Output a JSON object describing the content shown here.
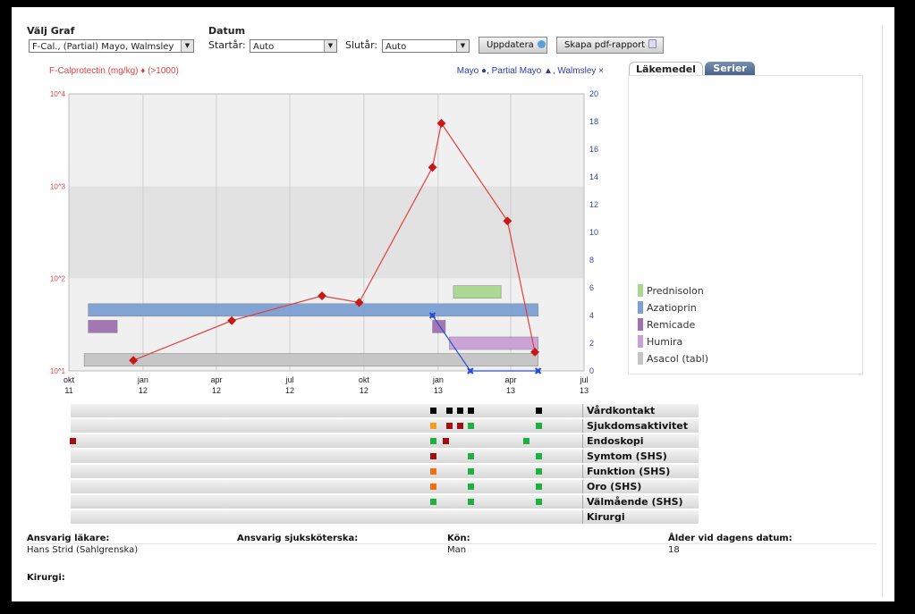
{
  "controls": {
    "graph_label": "Välj Graf",
    "graph_value": "F-Cal., (Partial) Mayo, Walmsley",
    "date_label": "Datum",
    "start_label": "Startår:",
    "start_value": "Auto",
    "end_label": "Slutår:",
    "end_value": "Auto",
    "update_button": "Uppdatera",
    "pdf_button": "Skapa pdf-rapport"
  },
  "chart_data": {
    "type": "line",
    "title_left": "F-Calprotectin (mg/kg) ♦ (>1000)",
    "title_right": "Mayo ●, Partial Mayo ▲, Walmsley ×",
    "left_axis": {
      "scale": "log",
      "ticks": [
        "10^4",
        "10^3",
        "10^2",
        "10^1"
      ],
      "ylim": [
        10,
        10000
      ]
    },
    "right_axis": {
      "ticks": [
        "20",
        "18",
        "16",
        "14",
        "12",
        "10",
        "8",
        "6",
        "4",
        "2",
        "0"
      ],
      "ylim": [
        0,
        20
      ]
    },
    "x_ticks": [
      {
        "top": "okt",
        "bottom": "11"
      },
      {
        "top": "jan",
        "bottom": "12"
      },
      {
        "top": "apr",
        "bottom": "12"
      },
      {
        "top": "jul",
        "bottom": "12"
      },
      {
        "top": "okt",
        "bottom": "12"
      },
      {
        "top": "jan",
        "bottom": "13"
      },
      {
        "top": "apr",
        "bottom": "13"
      },
      {
        "top": "jul",
        "bottom": "13"
      }
    ],
    "xlim": [
      "2011-10-01",
      "2013-07-01"
    ],
    "series": [
      {
        "name": "F-Calprotectin (mg/kg)",
        "axis": "left",
        "color": "#e04040",
        "points": [
          {
            "x": "2011-12-20",
            "y": 13
          },
          {
            "x": "2012-04-20",
            "y": 35
          },
          {
            "x": "2012-08-10",
            "y": 65
          },
          {
            "x": "2012-09-25",
            "y": 55
          },
          {
            "x": "2012-12-25",
            "y": 1600
          },
          {
            "x": "2013-01-05",
            "y": 4800
          },
          {
            "x": "2013-03-28",
            "y": 420
          },
          {
            "x": "2013-05-01",
            "y": 16
          }
        ]
      },
      {
        "name": "Walmsley",
        "axis": "right",
        "color": "#2a4fd0",
        "points": [
          {
            "x": "2012-12-25",
            "y": 4
          },
          {
            "x": "2013-02-10",
            "y": 0
          },
          {
            "x": "2013-05-05",
            "y": 0
          }
        ]
      }
    ],
    "medications": [
      {
        "name": "Prednisolon",
        "color": "#a8d890",
        "periods": [
          {
            "start": "2013-01-20",
            "end": "2013-03-20"
          }
        ]
      },
      {
        "name": "Azatioprin",
        "color": "#7ca0d4",
        "periods": [
          {
            "start": "2011-10-25",
            "end": "2013-05-05"
          }
        ]
      },
      {
        "name": "Remicade",
        "color": "#a070b0",
        "periods": [
          {
            "start": "2011-10-25",
            "end": "2011-11-30"
          },
          {
            "start": "2012-12-25",
            "end": "2013-01-10"
          }
        ]
      },
      {
        "name": "Humira",
        "color": "#c8a0d8",
        "periods": [
          {
            "start": "2013-01-15",
            "end": "2013-05-05"
          }
        ]
      },
      {
        "name": "Asacol (tabl)",
        "color": "#c4c4c4",
        "periods": [
          {
            "start": "2011-10-20",
            "end": "2013-05-05"
          }
        ]
      }
    ]
  },
  "side_panel": {
    "tab_active": "Läkemedel",
    "tab_other": "Serier"
  },
  "history_rows": [
    {
      "name": "Vårdkontakt",
      "marks": [
        {
          "date": "2012-12-25",
          "color": "#000000"
        },
        {
          "date": "2013-01-15",
          "color": "#000000"
        },
        {
          "date": "2013-01-28",
          "color": "#000000"
        },
        {
          "date": "2013-02-10",
          "color": "#000000"
        },
        {
          "date": "2013-05-05",
          "color": "#000000"
        }
      ]
    },
    {
      "name": "Sjukdomsaktivitet",
      "marks": [
        {
          "date": "2012-12-25",
          "color": "#f0a020"
        },
        {
          "date": "2013-01-15",
          "color": "#a01010"
        },
        {
          "date": "2013-01-28",
          "color": "#a01010"
        },
        {
          "date": "2013-02-10",
          "color": "#20b040"
        },
        {
          "date": "2013-05-05",
          "color": "#20b040"
        }
      ]
    },
    {
      "name": "Endoskopi",
      "marks": [
        {
          "date": "2011-10-05",
          "color": "#a01010"
        },
        {
          "date": "2012-12-25",
          "color": "#20b040"
        },
        {
          "date": "2013-01-10",
          "color": "#a01010"
        },
        {
          "date": "2013-04-20",
          "color": "#20b040"
        }
      ]
    },
    {
      "name": "Symtom (SHS)",
      "marks": [
        {
          "date": "2012-12-25",
          "color": "#a01010"
        },
        {
          "date": "2013-02-10",
          "color": "#20b040"
        },
        {
          "date": "2013-05-05",
          "color": "#20b040"
        }
      ]
    },
    {
      "name": "Funktion (SHS)",
      "marks": [
        {
          "date": "2012-12-25",
          "color": "#f07010"
        },
        {
          "date": "2013-02-10",
          "color": "#20b040"
        },
        {
          "date": "2013-05-05",
          "color": "#20b040"
        }
      ]
    },
    {
      "name": "Oro (SHS)",
      "marks": [
        {
          "date": "2012-12-25",
          "color": "#f07010"
        },
        {
          "date": "2013-02-10",
          "color": "#20b040"
        },
        {
          "date": "2013-05-05",
          "color": "#20b040"
        }
      ]
    },
    {
      "name": "Välmående (SHS)",
      "marks": [
        {
          "date": "2012-12-25",
          "color": "#20b040"
        },
        {
          "date": "2013-02-10",
          "color": "#20b040"
        },
        {
          "date": "2013-05-05",
          "color": "#20b040"
        }
      ]
    },
    {
      "name": "Kirurgi",
      "marks": []
    }
  ],
  "patient_info": {
    "doctor_label": "Ansvarig läkare:",
    "doctor_value": "Hans Strid (Sahlgrenska)",
    "nurse_label": "Ansvarig sjuksköterska:",
    "sex_label": "Kön:",
    "sex_value": "Man",
    "age_label": "Ålder vid dagens datum:",
    "age_value": "18",
    "surgery_label": "Kirurgi:"
  }
}
